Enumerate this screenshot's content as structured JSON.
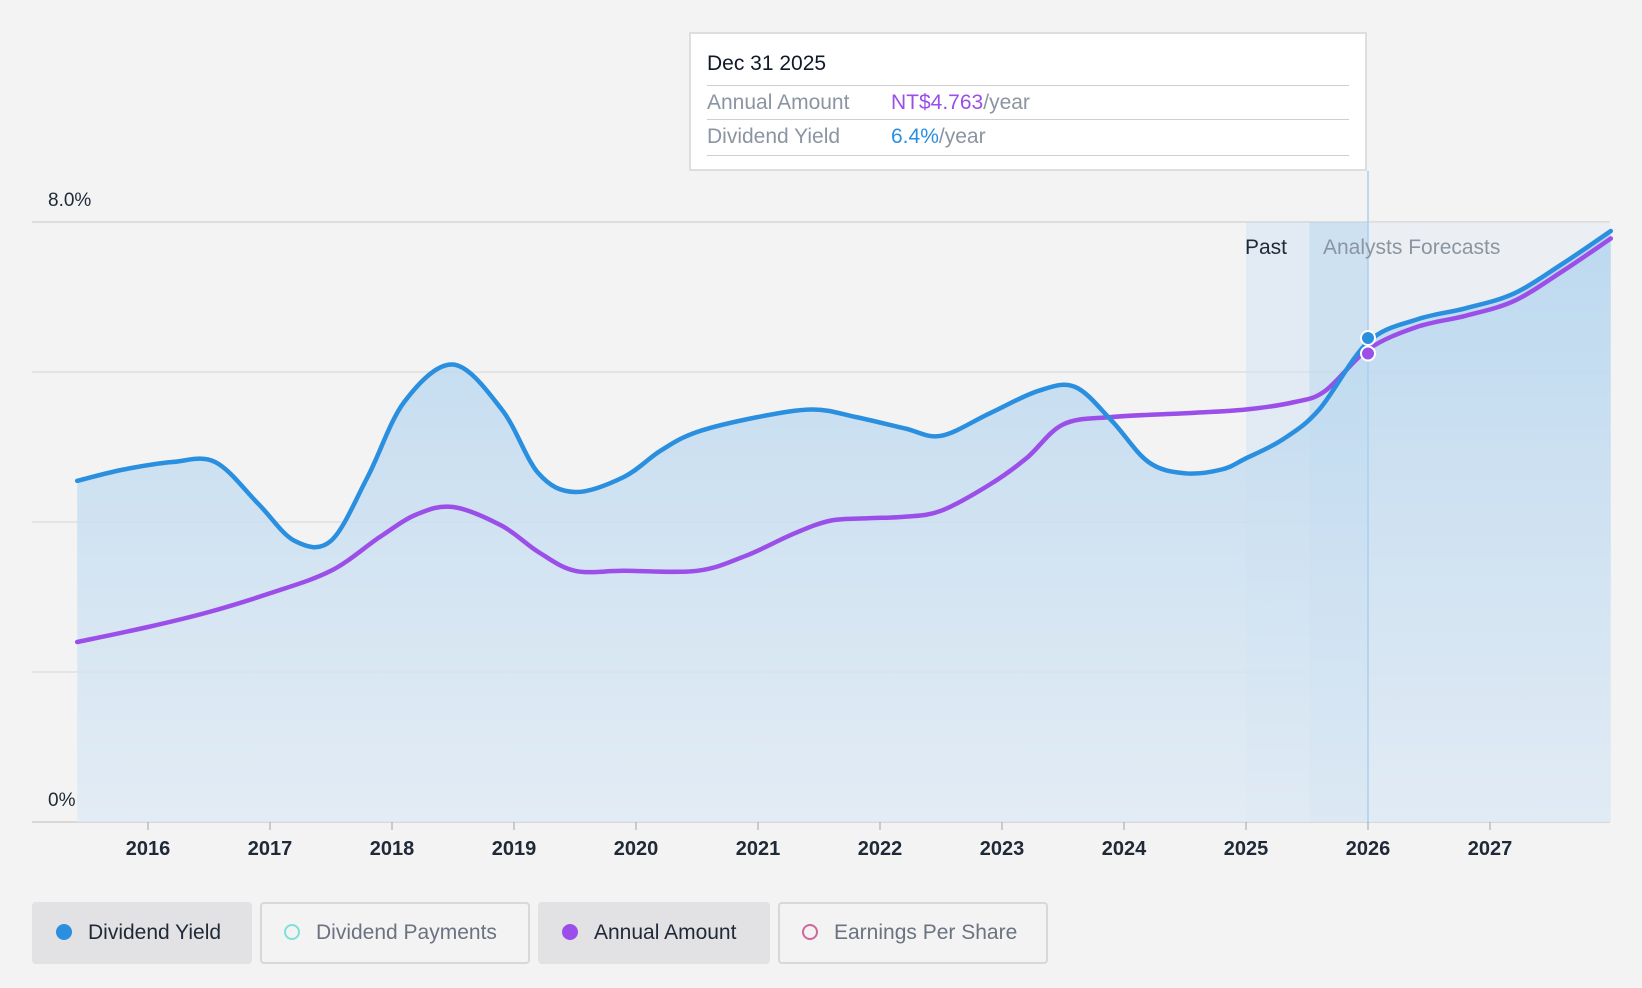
{
  "tooltip": {
    "date": "Dec 31 2025",
    "rows": [
      {
        "label": "Annual Amount",
        "value": "NT$4.763",
        "unit": "/year"
      },
      {
        "label": "Dividend Yield",
        "value": "6.4%",
        "unit": "/year"
      }
    ]
  },
  "regions": {
    "past": "Past",
    "forecast": "Analysts Forecasts"
  },
  "legend": [
    {
      "label": "Dividend Yield",
      "active": true,
      "dot": "filled",
      "color": "#2b8fe0"
    },
    {
      "label": "Dividend Payments",
      "active": false,
      "dot": "hollow",
      "color": "#7ee0d8"
    },
    {
      "label": "Annual Amount",
      "active": true,
      "dot": "filled",
      "color": "#9b4fe8"
    },
    {
      "label": "Earnings Per Share",
      "active": false,
      "dot": "hollow",
      "color": "#d0669a"
    }
  ],
  "colors": {
    "yield": "#2b8fe0",
    "amount": "#9b4fe8",
    "area": "#b9d8f0",
    "grid": "#d6d6d6"
  },
  "chart_data": {
    "type": "line",
    "y_tick_labels": [
      {
        "value": 8.0,
        "label": "8.0%"
      },
      {
        "value": 0,
        "label": "0%"
      }
    ],
    "ylim": [
      0,
      8
    ],
    "y_gridlines": [
      0,
      2,
      4,
      6,
      8
    ],
    "x_ticks": [
      "2016",
      "2017",
      "2018",
      "2019",
      "2020",
      "2021",
      "2022",
      "2023",
      "2024",
      "2025",
      "2026",
      "2027"
    ],
    "xlim": [
      2015.0,
      2027.99
    ],
    "highlight_x": 2026.0,
    "past_band": [
      2025.0,
      2026.0
    ],
    "series": [
      {
        "name": "Dividend Yield",
        "color": "#2b8fe0",
        "points": [
          [
            2015.42,
            4.55
          ],
          [
            2015.8,
            4.7
          ],
          [
            2016.2,
            4.8
          ],
          [
            2016.55,
            4.8
          ],
          [
            2016.9,
            4.25
          ],
          [
            2017.2,
            3.75
          ],
          [
            2017.5,
            3.75
          ],
          [
            2017.8,
            4.6
          ],
          [
            2018.1,
            5.6
          ],
          [
            2018.5,
            6.1
          ],
          [
            2018.9,
            5.5
          ],
          [
            2019.2,
            4.65
          ],
          [
            2019.5,
            4.4
          ],
          [
            2019.9,
            4.6
          ],
          [
            2020.2,
            4.95
          ],
          [
            2020.5,
            5.2
          ],
          [
            2021.0,
            5.4
          ],
          [
            2021.45,
            5.5
          ],
          [
            2021.8,
            5.4
          ],
          [
            2022.2,
            5.25
          ],
          [
            2022.5,
            5.15
          ],
          [
            2022.9,
            5.45
          ],
          [
            2023.3,
            5.75
          ],
          [
            2023.6,
            5.8
          ],
          [
            2023.9,
            5.35
          ],
          [
            2024.2,
            4.8
          ],
          [
            2024.5,
            4.65
          ],
          [
            2024.8,
            4.7
          ],
          [
            2025.0,
            4.85
          ],
          [
            2025.3,
            5.1
          ],
          [
            2025.6,
            5.5
          ],
          [
            2026.0,
            6.4
          ],
          [
            2026.4,
            6.7
          ],
          [
            2026.8,
            6.85
          ],
          [
            2027.2,
            7.05
          ],
          [
            2027.6,
            7.45
          ],
          [
            2027.99,
            7.88
          ]
        ]
      },
      {
        "name": "Annual Amount",
        "color": "#9b4fe8",
        "points": [
          [
            2015.42,
            2.4
          ],
          [
            2016.0,
            2.6
          ],
          [
            2016.5,
            2.8
          ],
          [
            2017.0,
            3.05
          ],
          [
            2017.5,
            3.35
          ],
          [
            2017.9,
            3.8
          ],
          [
            2018.2,
            4.1
          ],
          [
            2018.5,
            4.2
          ],
          [
            2018.9,
            3.95
          ],
          [
            2019.2,
            3.6
          ],
          [
            2019.5,
            3.35
          ],
          [
            2019.9,
            3.35
          ],
          [
            2020.5,
            3.35
          ],
          [
            2020.9,
            3.55
          ],
          [
            2021.3,
            3.85
          ],
          [
            2021.6,
            4.02
          ],
          [
            2021.9,
            4.05
          ],
          [
            2022.2,
            4.07
          ],
          [
            2022.5,
            4.15
          ],
          [
            2022.9,
            4.5
          ],
          [
            2023.2,
            4.85
          ],
          [
            2023.5,
            5.3
          ],
          [
            2023.9,
            5.4
          ],
          [
            2024.5,
            5.45
          ],
          [
            2025.0,
            5.5
          ],
          [
            2025.4,
            5.6
          ],
          [
            2025.65,
            5.75
          ],
          [
            2026.0,
            6.3
          ],
          [
            2026.4,
            6.6
          ],
          [
            2026.8,
            6.75
          ],
          [
            2027.2,
            6.95
          ],
          [
            2027.6,
            7.35
          ],
          [
            2027.99,
            7.78
          ]
        ]
      }
    ]
  }
}
